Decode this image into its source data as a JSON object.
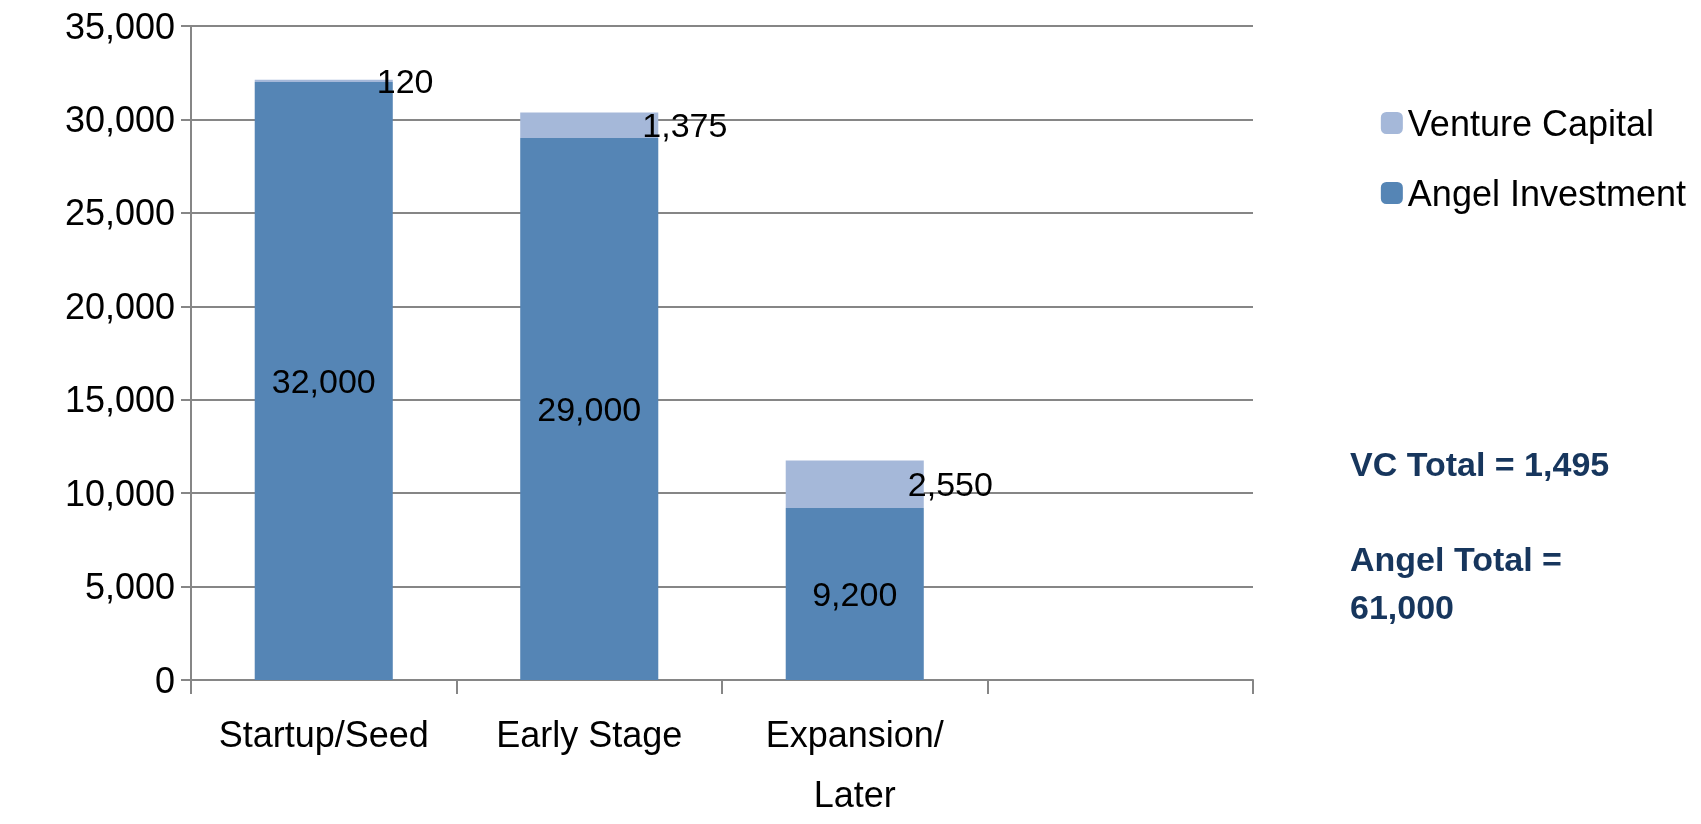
{
  "chart_data": {
    "type": "bar",
    "stacked": true,
    "categories": [
      "Startup/Seed",
      "Early Stage",
      "Expansion/\nLater",
      null
    ],
    "series": [
      {
        "name": "Angel Investment",
        "color": "#5585b5",
        "values": [
          32000,
          29000,
          9200,
          null
        ],
        "value_labels": [
          "32,000",
          "29,000",
          "9,200",
          null
        ]
      },
      {
        "name": "Venture Capital",
        "color": "#a5b8d9",
        "values": [
          120,
          1375,
          2550,
          null
        ],
        "value_labels": [
          "120",
          "1,375",
          "2,550",
          null
        ]
      }
    ],
    "ylim": [
      0,
      35000
    ],
    "yticks": [
      {
        "value": 0,
        "label": "0"
      },
      {
        "value": 5000,
        "label": "5,000"
      },
      {
        "value": 10000,
        "label": "10,000"
      },
      {
        "value": 15000,
        "label": "15,000"
      },
      {
        "value": 20000,
        "label": "20,000"
      },
      {
        "value": 25000,
        "label": "25,000"
      },
      {
        "value": 30000,
        "label": "30,000"
      },
      {
        "value": 35000,
        "label": "35,000"
      }
    ],
    "grid": "y",
    "legend": "right",
    "annotations": [
      "VC Total = 1,495",
      "Angel Total =\n61,000"
    ]
  }
}
